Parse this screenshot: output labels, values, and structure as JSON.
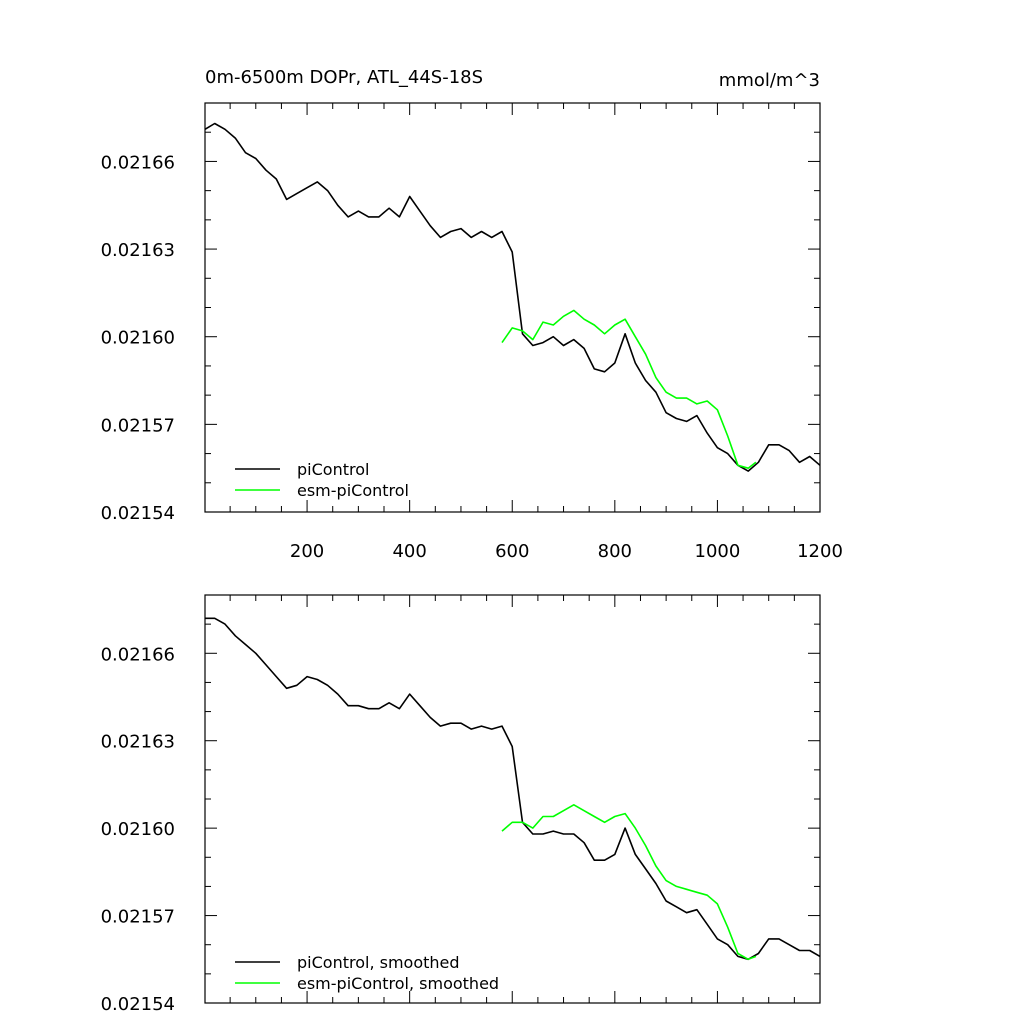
{
  "chart_data": [
    {
      "type": "line",
      "title": "0m-6500m DOPr, ATL_44S-18S",
      "units": "mmol/m^3",
      "xlim": [
        1,
        1200
      ],
      "ylim": [
        0.02154,
        0.02168
      ],
      "xticks": [
        200,
        400,
        600,
        800,
        1000,
        1200
      ],
      "xtick_labels": [
        "200",
        "400",
        "600",
        "800",
        "1000",
        "1200"
      ],
      "yticks": [
        0.02154,
        0.02157,
        0.0216,
        0.02163,
        0.02166
      ],
      "ytick_labels": [
        "0.02154",
        "0.02157",
        "0.02160",
        "0.02163",
        "0.02166"
      ],
      "legend_position": "bottom-left",
      "series": [
        {
          "name": "piControl",
          "color": "#000000",
          "x": [
            1,
            20,
            40,
            60,
            80,
            100,
            120,
            140,
            160,
            180,
            200,
            220,
            240,
            260,
            280,
            300,
            320,
            340,
            360,
            380,
            400,
            420,
            440,
            460,
            480,
            500,
            520,
            540,
            560,
            580,
            600,
            620,
            640,
            660,
            680,
            700,
            720,
            740,
            760,
            780,
            800,
            820,
            840,
            860,
            880,
            900,
            920,
            940,
            960,
            980,
            1000,
            1020,
            1040,
            1060,
            1080,
            1100,
            1120,
            1140,
            1160,
            1180,
            1200
          ],
          "y": [
            0.021671,
            0.021673,
            0.021671,
            0.021668,
            0.021663,
            0.021661,
            0.021657,
            0.021654,
            0.021647,
            0.021649,
            0.021651,
            0.021653,
            0.02165,
            0.021645,
            0.021641,
            0.021643,
            0.021641,
            0.021641,
            0.021644,
            0.021641,
            0.021648,
            0.021643,
            0.021638,
            0.021634,
            0.021636,
            0.021637,
            0.021634,
            0.021636,
            0.021634,
            0.021636,
            0.021629,
            0.021601,
            0.021597,
            0.021598,
            0.0216,
            0.021597,
            0.021599,
            0.021596,
            0.021589,
            0.021588,
            0.021591,
            0.021601,
            0.021591,
            0.021585,
            0.021581,
            0.021574,
            0.021572,
            0.021571,
            0.021573,
            0.021567,
            0.021562,
            0.02156,
            0.021556,
            0.021554,
            0.021557,
            0.021563,
            0.021563,
            0.021561,
            0.021557,
            0.021559,
            0.021556
          ]
        },
        {
          "name": "esm-piControl",
          "color": "#00ff00",
          "x": [
            580,
            600,
            620,
            640,
            660,
            680,
            700,
            720,
            740,
            760,
            780,
            800,
            820,
            840,
            860,
            880,
            900,
            920,
            940,
            960,
            980,
            1000,
            1020,
            1040,
            1060,
            1075
          ],
          "y": [
            0.021598,
            0.021603,
            0.021602,
            0.021599,
            0.021605,
            0.021604,
            0.021607,
            0.021609,
            0.021606,
            0.021604,
            0.021601,
            0.021604,
            0.021606,
            0.0216,
            0.021594,
            0.021586,
            0.021581,
            0.021579,
            0.021579,
            0.021577,
            0.021578,
            0.021575,
            0.021566,
            0.021556,
            0.021555,
            0.021557
          ]
        }
      ]
    },
    {
      "type": "line",
      "xlim": [
        1,
        1200
      ],
      "ylim": [
        0.02154,
        0.02168
      ],
      "yticks": [
        0.02154,
        0.02157,
        0.0216,
        0.02163,
        0.02166
      ],
      "ytick_labels": [
        "0.02154",
        "0.02157",
        "0.02160",
        "0.02163",
        "0.02166"
      ],
      "legend_position": "bottom-left",
      "series": [
        {
          "name": "piControl, smoothed",
          "color": "#000000",
          "x": [
            1,
            20,
            40,
            60,
            80,
            100,
            120,
            140,
            160,
            180,
            200,
            220,
            240,
            260,
            280,
            300,
            320,
            340,
            360,
            380,
            400,
            420,
            440,
            460,
            480,
            500,
            520,
            540,
            560,
            580,
            600,
            620,
            640,
            660,
            680,
            700,
            720,
            740,
            760,
            780,
            800,
            820,
            840,
            860,
            880,
            900,
            920,
            940,
            960,
            980,
            1000,
            1020,
            1040,
            1060,
            1080,
            1100,
            1120,
            1140,
            1160,
            1180,
            1200
          ],
          "y": [
            0.021672,
            0.021672,
            0.02167,
            0.021666,
            0.021663,
            0.02166,
            0.021656,
            0.021652,
            0.021648,
            0.021649,
            0.021652,
            0.021651,
            0.021649,
            0.021646,
            0.021642,
            0.021642,
            0.021641,
            0.021641,
            0.021643,
            0.021641,
            0.021646,
            0.021642,
            0.021638,
            0.021635,
            0.021636,
            0.021636,
            0.021634,
            0.021635,
            0.021634,
            0.021635,
            0.021628,
            0.021602,
            0.021598,
            0.021598,
            0.021599,
            0.021598,
            0.021598,
            0.021595,
            0.021589,
            0.021589,
            0.021591,
            0.0216,
            0.021591,
            0.021586,
            0.021581,
            0.021575,
            0.021573,
            0.021571,
            0.021572,
            0.021567,
            0.021562,
            0.02156,
            0.021556,
            0.021555,
            0.021557,
            0.021562,
            0.021562,
            0.02156,
            0.021558,
            0.021558,
            0.021556
          ]
        },
        {
          "name": "esm-piControl, smoothed",
          "color": "#00ff00",
          "x": [
            580,
            600,
            620,
            640,
            660,
            680,
            700,
            720,
            740,
            760,
            780,
            800,
            820,
            840,
            860,
            880,
            900,
            920,
            940,
            960,
            980,
            1000,
            1020,
            1040,
            1060,
            1075
          ],
          "y": [
            0.021599,
            0.021602,
            0.021602,
            0.0216,
            0.021604,
            0.021604,
            0.021606,
            0.021608,
            0.021606,
            0.021604,
            0.021602,
            0.021604,
            0.021605,
            0.0216,
            0.021594,
            0.021587,
            0.021582,
            0.02158,
            0.021579,
            0.021578,
            0.021577,
            0.021574,
            0.021566,
            0.021557,
            0.021555,
            0.021556
          ]
        }
      ]
    }
  ]
}
